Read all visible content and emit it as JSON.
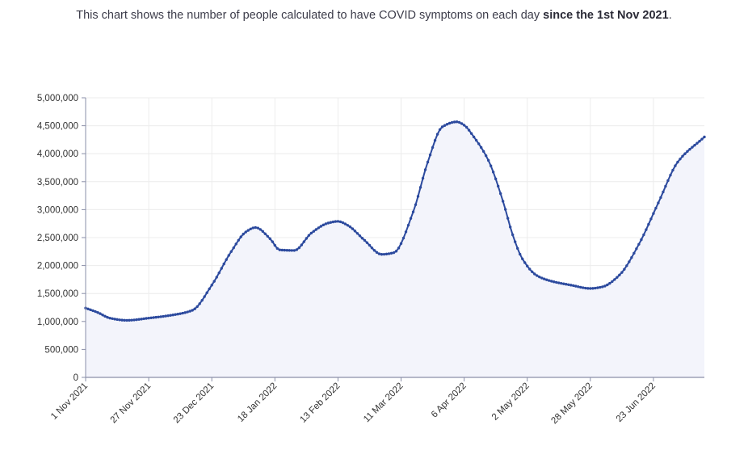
{
  "caption": {
    "prefix": "This chart shows the number of people calculated to have COVID symptoms on each day ",
    "bold": "since the 1st Nov 2021",
    "suffix": "."
  },
  "colors": {
    "line": "#2c4a9e",
    "fill": "#f3f4fb",
    "grid": "#ececec",
    "axis": "#8a8fa8"
  },
  "chart_data": {
    "type": "area",
    "title": "",
    "xlabel": "",
    "ylabel": "",
    "ylim": [
      0,
      5000000
    ],
    "y_ticks": [
      0,
      500000,
      1000000,
      1500000,
      2000000,
      2500000,
      3000000,
      3500000,
      4000000,
      4500000,
      5000000
    ],
    "y_tick_labels": [
      "0",
      "500,000",
      "1,000,000",
      "1,500,000",
      "2,000,000",
      "2,500,000",
      "3,000,000",
      "3,500,000",
      "4,000,000",
      "4,500,000",
      "5,000,000"
    ],
    "x_range_days": [
      0,
      255
    ],
    "x_ticks_day": [
      0,
      26,
      52,
      78,
      104,
      130,
      156,
      182,
      208,
      234
    ],
    "x_tick_labels": [
      "1 Nov 2021",
      "27 Nov 2021",
      "23 Dec 2021",
      "18 Jan 2022",
      "13 Feb 2022",
      "11 Mar 2022",
      "6 Apr 2022",
      "2 May 2022",
      "28 May 2022",
      "23 Jun 2022"
    ],
    "series": [
      {
        "name": "People with COVID symptoms",
        "x_day": [
          0,
          5,
          10,
          17,
          26,
          35,
          44,
          52,
          60,
          66,
          70,
          76,
          80,
          86,
          93,
          100,
          104,
          108,
          115,
          122,
          127,
          135,
          141,
          147,
          153,
          156,
          160,
          166,
          172,
          176,
          180,
          186,
          192,
          200,
          208,
          213,
          220,
          228,
          236,
          244,
          255
        ],
        "values": [
          1240000,
          1160000,
          1060000,
          1020000,
          1060000,
          1110000,
          1200000,
          1650000,
          2250000,
          2600000,
          2680000,
          2480000,
          2280000,
          2270000,
          2580000,
          2760000,
          2790000,
          2720000,
          2450000,
          2200000,
          2230000,
          2960000,
          3850000,
          4480000,
          4570000,
          4510000,
          4300000,
          3880000,
          3150000,
          2550000,
          2120000,
          1820000,
          1720000,
          1650000,
          1590000,
          1620000,
          1830000,
          2380000,
          3120000,
          3850000,
          4300000
        ]
      }
    ]
  }
}
